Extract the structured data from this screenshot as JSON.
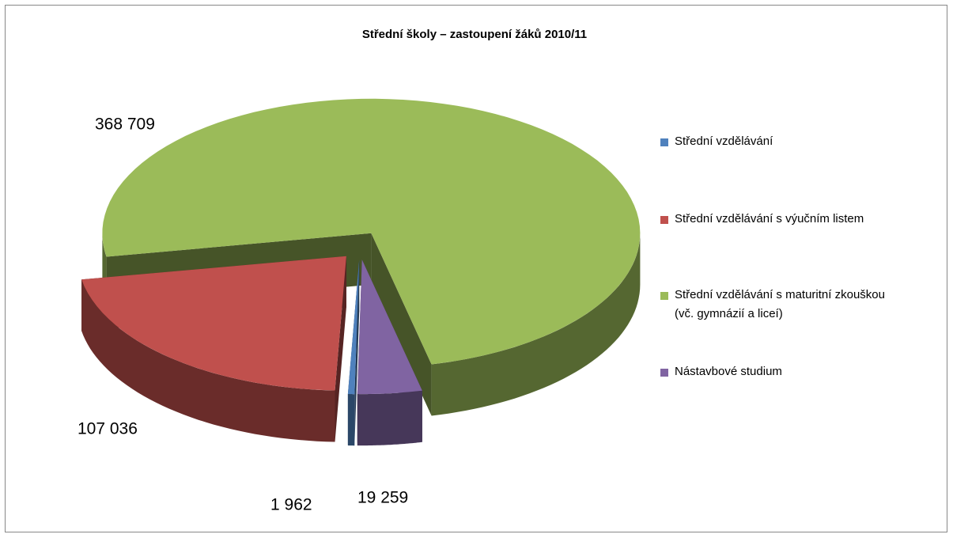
{
  "chart_data": {
    "type": "pie3d",
    "title": "Střední školy – zastoupení žáků 2010/11",
    "categories": [
      "Střední vzdělávání",
      "Střední vzdělávání s výučním listem",
      "Střední vzdělávání s maturitní zkouškou (vč. gymnázií a liceí)",
      "Nástavbové studium"
    ],
    "values": [
      1962,
      107036,
      368709,
      19259
    ],
    "value_labels": [
      "1 962",
      "107 036",
      "368 709",
      "19 259"
    ],
    "colors": [
      "#4f81bd",
      "#c0504d",
      "#9bbb59",
      "#8064a2"
    ],
    "legend": "right"
  }
}
